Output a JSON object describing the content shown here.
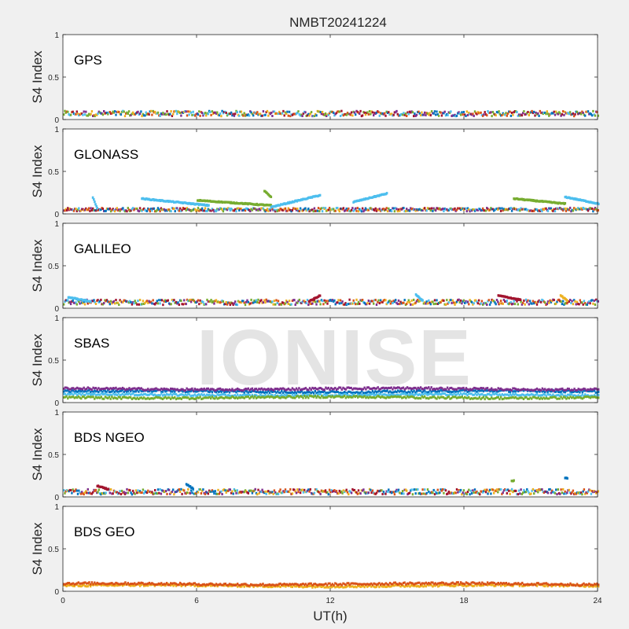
{
  "figure": {
    "title": "NMBT20241224",
    "watermark": "IONISE",
    "xlabel": "UT(h)",
    "ylabel": "S4 Index"
  },
  "chart_data": [
    {
      "type": "scatter",
      "panel_label": "GPS",
      "ylabel": "S4 Index",
      "ylim": [
        0,
        1
      ],
      "yticks": [
        "0",
        "0.5",
        "1"
      ],
      "xlim": [
        0,
        24
      ],
      "series_colors": [
        "#0072bd",
        "#d95319",
        "#edb120",
        "#7e2f8e",
        "#77ac30",
        "#4dbeee",
        "#a2142f"
      ],
      "baseline": 0.07,
      "spread": 0.03,
      "max": 0.17,
      "features": []
    },
    {
      "type": "scatter",
      "panel_label": "GLONASS",
      "ylabel": "S4 Index",
      "ylim": [
        0,
        1
      ],
      "yticks": [
        "0",
        "0.5",
        "1"
      ],
      "xlim": [
        0,
        24
      ],
      "series_colors": [
        "#0072bd",
        "#d95319",
        "#edb120",
        "#7e2f8e",
        "#77ac30",
        "#4dbeee",
        "#a2142f"
      ],
      "baseline": 0.05,
      "spread": 0.02,
      "max": 0.28,
      "features": [
        {
          "t0": 1.3,
          "t1": 1.5,
          "v0": 0.19,
          "v1": 0.07,
          "color": "#4dbeee"
        },
        {
          "t0": 3.5,
          "t1": 6.5,
          "v0": 0.18,
          "v1": 0.1,
          "color": "#4dbeee"
        },
        {
          "t0": 6.0,
          "t1": 9.3,
          "v0": 0.16,
          "v1": 0.1,
          "color": "#77ac30"
        },
        {
          "t0": 9.0,
          "t1": 9.3,
          "v0": 0.27,
          "v1": 0.2,
          "color": "#77ac30"
        },
        {
          "t0": 9.3,
          "t1": 11.5,
          "v0": 0.08,
          "v1": 0.22,
          "color": "#4dbeee"
        },
        {
          "t0": 13.0,
          "t1": 14.5,
          "v0": 0.14,
          "v1": 0.24,
          "color": "#4dbeee"
        },
        {
          "t0": 20.2,
          "t1": 22.5,
          "v0": 0.18,
          "v1": 0.12,
          "color": "#77ac30"
        },
        {
          "t0": 22.5,
          "t1": 24.0,
          "v0": 0.2,
          "v1": 0.12,
          "color": "#4dbeee"
        }
      ]
    },
    {
      "type": "scatter",
      "panel_label": "GALILEO",
      "ylabel": "S4 Index",
      "ylim": [
        0,
        1
      ],
      "yticks": [
        "0",
        "0.5",
        "1"
      ],
      "xlim": [
        0,
        24
      ],
      "series_colors": [
        "#0072bd",
        "#d95319",
        "#edb120",
        "#7e2f8e",
        "#77ac30",
        "#4dbeee",
        "#a2142f"
      ],
      "baseline": 0.07,
      "spread": 0.03,
      "max": 0.17,
      "features": [
        {
          "t0": 0.2,
          "t1": 1.2,
          "v0": 0.13,
          "v1": 0.08,
          "color": "#4dbeee"
        },
        {
          "t0": 11.0,
          "t1": 11.5,
          "v0": 0.08,
          "v1": 0.15,
          "color": "#a2142f"
        },
        {
          "t0": 15.8,
          "t1": 16.1,
          "v0": 0.16,
          "v1": 0.09,
          "color": "#4dbeee"
        },
        {
          "t0": 19.5,
          "t1": 20.5,
          "v0": 0.15,
          "v1": 0.1,
          "color": "#a2142f"
        },
        {
          "t0": 22.3,
          "t1": 22.6,
          "v0": 0.15,
          "v1": 0.09,
          "color": "#edb120"
        }
      ]
    },
    {
      "type": "scatter",
      "panel_label": "SBAS",
      "ylabel": "S4 Index",
      "ylim": [
        0,
        1
      ],
      "yticks": [
        "0",
        "0.5",
        "1"
      ],
      "xlim": [
        0,
        24
      ],
      "series_colors": [
        "#0072bd",
        "#4dbeee",
        "#7e2f8e",
        "#77ac30"
      ],
      "bands": [
        0.13,
        0.09,
        0.16,
        0.06
      ],
      "features": []
    },
    {
      "type": "scatter",
      "panel_label": "BDS NGEO",
      "ylabel": "S4 Index",
      "ylim": [
        0,
        1
      ],
      "yticks": [
        "0",
        "0.5",
        "1"
      ],
      "xlim": [
        0,
        24
      ],
      "series_colors": [
        "#0072bd",
        "#d95319",
        "#edb120",
        "#7e2f8e",
        "#77ac30",
        "#4dbeee",
        "#a2142f"
      ],
      "baseline": 0.06,
      "spread": 0.03,
      "max": 0.22,
      "features": [
        {
          "t0": 22.5,
          "t1": 22.6,
          "v0": 0.22,
          "v1": 0.22,
          "color": "#0072bd"
        },
        {
          "t0": 20.1,
          "t1": 20.2,
          "v0": 0.19,
          "v1": 0.19,
          "color": "#77ac30"
        },
        {
          "t0": 1.5,
          "t1": 2.0,
          "v0": 0.13,
          "v1": 0.09,
          "color": "#a2142f"
        },
        {
          "t0": 5.5,
          "t1": 5.8,
          "v0": 0.15,
          "v1": 0.1,
          "color": "#0072bd"
        }
      ]
    },
    {
      "type": "scatter",
      "panel_label": "BDS GEO",
      "ylabel": "S4 Index",
      "ylim": [
        0,
        1
      ],
      "yticks": [
        "0",
        "0.5",
        "1"
      ],
      "xlim": [
        0,
        24
      ],
      "series_colors": [
        "#edb120",
        "#d95319"
      ],
      "bands": [
        0.065,
        0.085
      ],
      "features": []
    }
  ],
  "xaxis": {
    "ticks": [
      0,
      6,
      12,
      18,
      24
    ],
    "tick_labels": [
      "0",
      "6",
      "12",
      "18",
      "24"
    ]
  }
}
